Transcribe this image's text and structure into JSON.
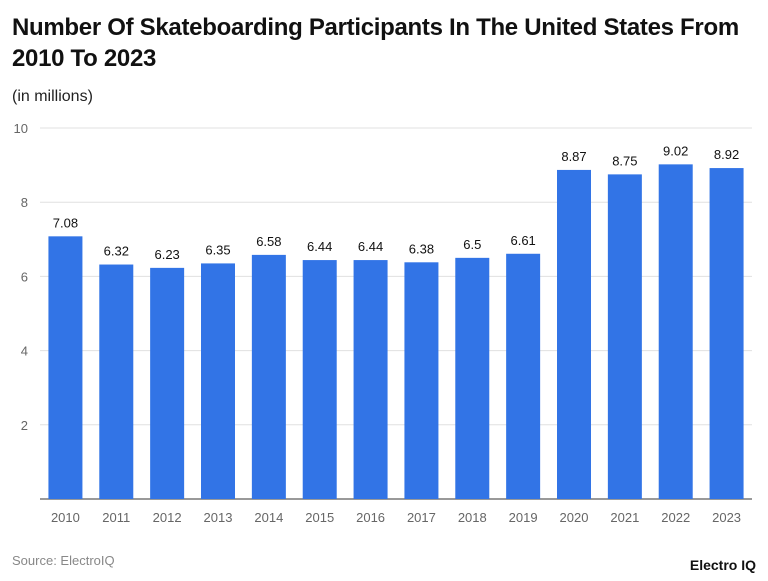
{
  "chart_data": {
    "type": "bar",
    "title": "Number Of Skateboarding Participants In The United States From 2010 To 2023",
    "subtitle": "(in millions)",
    "categories": [
      "2010",
      "2011",
      "2012",
      "2013",
      "2014",
      "2015",
      "2016",
      "2017",
      "2018",
      "2019",
      "2020",
      "2021",
      "2022",
      "2023"
    ],
    "values": [
      7.08,
      6.32,
      6.23,
      6.35,
      6.58,
      6.44,
      6.44,
      6.38,
      6.5,
      6.61,
      8.87,
      8.75,
      9.02,
      8.92
    ],
    "ylim": [
      0,
      10
    ],
    "yticks": [
      2,
      4,
      6,
      8,
      10
    ],
    "grid": true,
    "bar_color": "#3274e6",
    "xlabel": "",
    "ylabel": ""
  },
  "footer": {
    "source": "Source: ElectroIQ",
    "logo": "Electro IQ"
  }
}
